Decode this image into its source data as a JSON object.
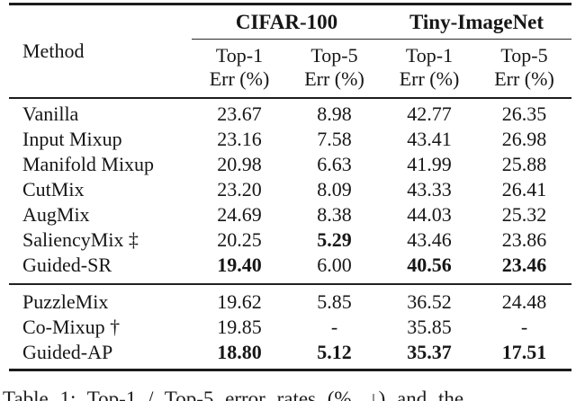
{
  "table": {
    "method_header": "Method",
    "groups": [
      {
        "label": "CIFAR-100"
      },
      {
        "label": "Tiny-ImageNet"
      }
    ],
    "sub_headers": [
      "Top-1\nErr (%)",
      "Top-5\nErr (%)",
      "Top-1\nErr (%)",
      "Top-5\nErr (%)"
    ],
    "sections": [
      {
        "rows": [
          {
            "method": "Vanilla",
            "values": [
              "23.67",
              "8.98",
              "42.77",
              "26.35"
            ],
            "bold": [
              false,
              false,
              false,
              false
            ]
          },
          {
            "method": "Input Mixup",
            "values": [
              "23.16",
              "7.58",
              "43.41",
              "26.98"
            ],
            "bold": [
              false,
              false,
              false,
              false
            ]
          },
          {
            "method": "Manifold Mixup",
            "values": [
              "20.98",
              "6.63",
              "41.99",
              "25.88"
            ],
            "bold": [
              false,
              false,
              false,
              false
            ]
          },
          {
            "method": "CutMix",
            "values": [
              "23.20",
              "8.09",
              "43.33",
              "26.41"
            ],
            "bold": [
              false,
              false,
              false,
              false
            ]
          },
          {
            "method": "AugMix",
            "values": [
              "24.69",
              "8.38",
              "44.03",
              "25.32"
            ],
            "bold": [
              false,
              false,
              false,
              false
            ]
          },
          {
            "method": "SaliencyMix ‡",
            "values": [
              "20.25",
              "5.29",
              "43.46",
              "23.86"
            ],
            "bold": [
              false,
              true,
              false,
              false
            ]
          },
          {
            "method": "Guided-SR",
            "values": [
              "19.40",
              "6.00",
              "40.56",
              "23.46"
            ],
            "bold": [
              true,
              false,
              true,
              true
            ]
          }
        ]
      },
      {
        "rows": [
          {
            "method": "PuzzleMix",
            "values": [
              "19.62",
              "5.85",
              "36.52",
              "24.48"
            ],
            "bold": [
              false,
              false,
              false,
              false
            ]
          },
          {
            "method": "Co-Mixup †",
            "values": [
              "19.85",
              "-",
              "35.85",
              "-"
            ],
            "bold": [
              false,
              false,
              false,
              false
            ]
          },
          {
            "method": "Guided-AP",
            "values": [
              "18.80",
              "5.12",
              "35.37",
              "17.51"
            ],
            "bold": [
              true,
              true,
              true,
              true
            ]
          }
        ]
      }
    ]
  },
  "caption": {
    "text": "Table 1: Top-1 / Top-5 error rates (%, ↓) and the"
  }
}
